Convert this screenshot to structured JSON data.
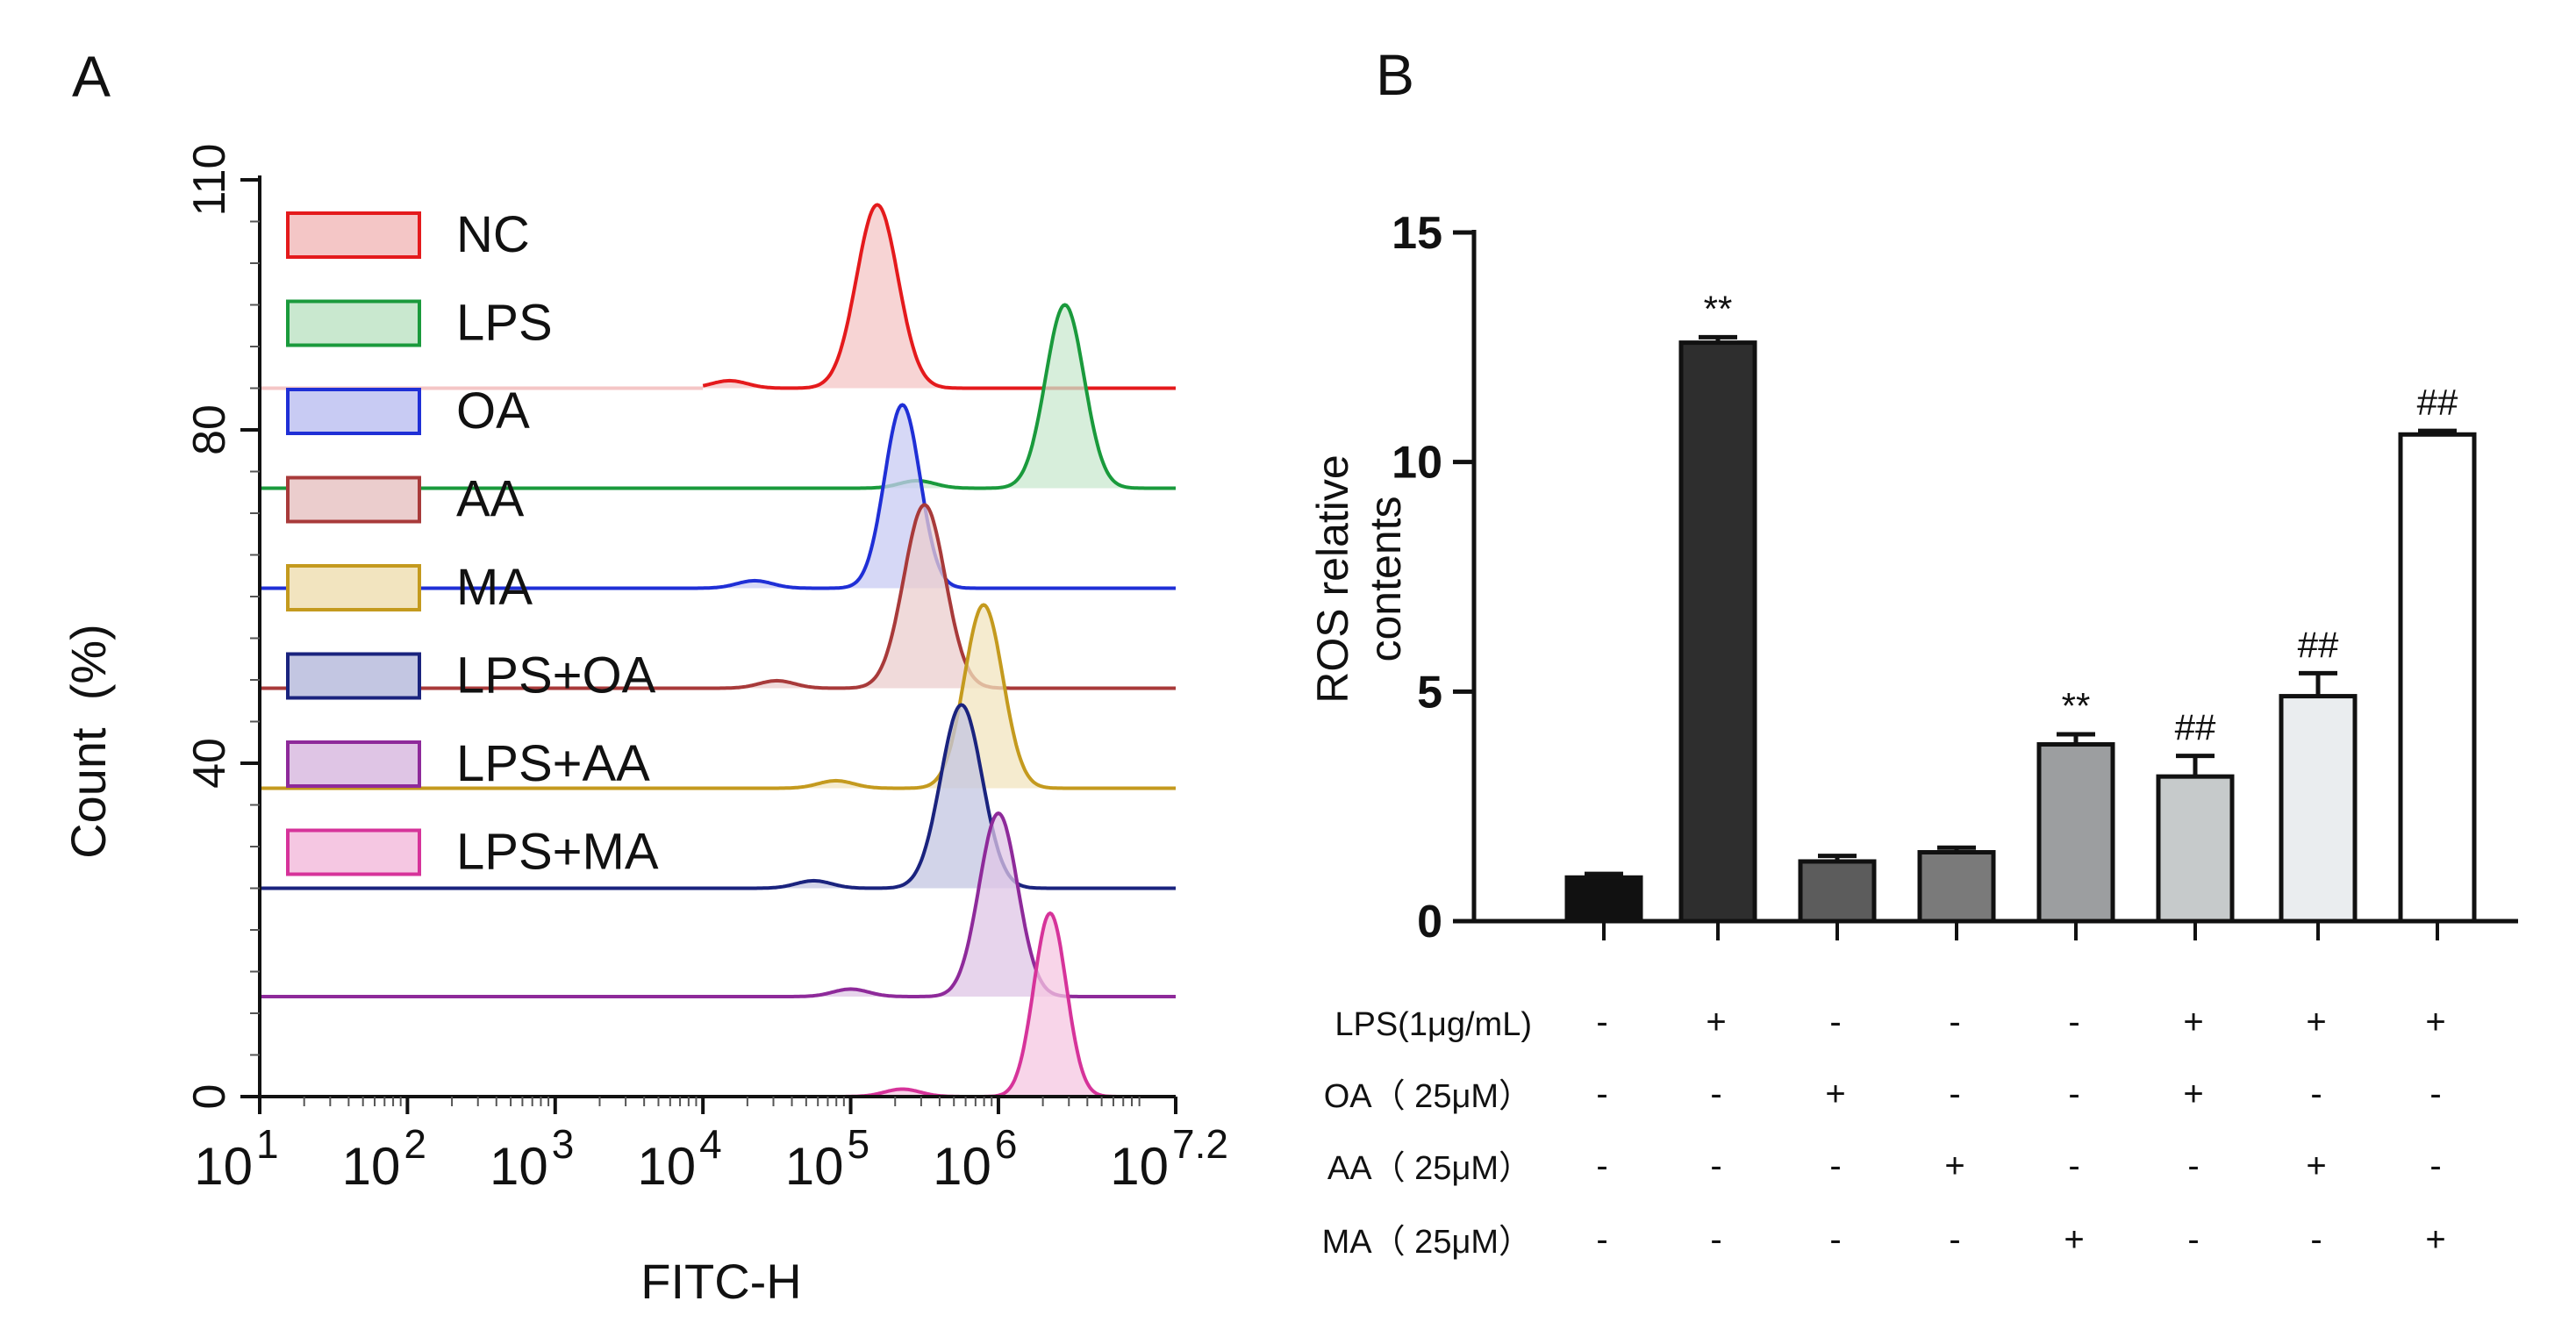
{
  "chart_data": [
    {
      "panel": "A",
      "type": "line",
      "subtype": "flow-cytometry-histogram-overlay",
      "xlabel": "FITC-H",
      "ylabel": "Count  (%)",
      "xscale": "log10",
      "xlim_log": [
        1,
        7.2
      ],
      "ylim": [
        0,
        110
      ],
      "yticks": [
        0,
        40,
        80,
        110
      ],
      "xticks": [
        {
          "base": "10",
          "exp": "1",
          "log": 1
        },
        {
          "base": "10",
          "exp": "2",
          "log": 2
        },
        {
          "base": "10",
          "exp": "3",
          "log": 3
        },
        {
          "base": "10",
          "exp": "4",
          "log": 4
        },
        {
          "base": "10",
          "exp": "5",
          "log": 5
        },
        {
          "base": "10",
          "exp": "6",
          "log": 6
        },
        {
          "base": "10",
          "exp": "7.2",
          "log": 7.2
        }
      ],
      "legend_position": "top-left",
      "series": [
        {
          "name": "NC",
          "color": "#e41a1c",
          "fill": "#f4c6c6",
          "offset": 85,
          "peak_log": 5.18,
          "width": 0.14,
          "height": 22,
          "left_start_log": 4.0
        },
        {
          "name": "LPS",
          "color": "#1a9a3c",
          "fill": "#c9e8cf",
          "offset": 73,
          "peak_log": 6.45,
          "width": 0.13,
          "height": 22,
          "left_start_log": 1.0
        },
        {
          "name": "OA",
          "color": "#1f2fd6",
          "fill": "#c8cbf3",
          "offset": 61,
          "peak_log": 5.35,
          "width": 0.12,
          "height": 22,
          "left_start_log": 1.0
        },
        {
          "name": "AA",
          "color": "#a83a3a",
          "fill": "#ebcdcd",
          "offset": 49,
          "peak_log": 5.5,
          "width": 0.14,
          "height": 22,
          "left_start_log": 1.0
        },
        {
          "name": "MA",
          "color": "#c49a1e",
          "fill": "#f2e4bf",
          "offset": 37,
          "peak_log": 5.9,
          "width": 0.13,
          "height": 22,
          "left_start_log": 1.0
        },
        {
          "name": "LPS+OA",
          "color": "#1a237e",
          "fill": "#c3c6e2",
          "offset": 25,
          "peak_log": 5.75,
          "width": 0.14,
          "height": 22,
          "left_start_log": 1.0
        },
        {
          "name": "LPS+AA",
          "color": "#8e2a9a",
          "fill": "#dfc5e5",
          "offset": 12,
          "peak_log": 6.0,
          "width": 0.13,
          "height": 22,
          "left_start_log": 1.0
        },
        {
          "name": "LPS+MA",
          "color": "#d6339a",
          "fill": "#f5c7e2",
          "offset": 0,
          "peak_log": 6.35,
          "width": 0.11,
          "height": 22,
          "left_start_log": 1.0
        }
      ]
    },
    {
      "panel": "B",
      "type": "bar",
      "ylabel_line1": "ROS relative",
      "ylabel_line2": "contents",
      "ylim": [
        0,
        15
      ],
      "yticks": [
        0,
        5,
        10,
        15
      ],
      "categories": [
        "NC",
        "LPS",
        "OA",
        "AA",
        "MA",
        "LPS+OA",
        "LPS+AA",
        "LPS+MA"
      ],
      "values": [
        0.95,
        12.6,
        1.3,
        1.5,
        3.85,
        3.15,
        4.9,
        10.6
      ],
      "errors": [
        0.08,
        0.12,
        0.12,
        0.1,
        0.22,
        0.45,
        0.5,
        0.08
      ],
      "bar_colors": [
        "#111111",
        "#2e2e2e",
        "#5c5c5c",
        "#7a7a7a",
        "#9c9ea0",
        "#c6cacb",
        "#eaedef",
        "#ffffff"
      ],
      "significance": [
        "",
        "**",
        "",
        "",
        "**",
        "##",
        "##",
        "##"
      ],
      "treatment_table": [
        {
          "label": "LPS(1μg/mL)",
          "signs": [
            "-",
            "+",
            "-",
            "-",
            "-",
            "+",
            "+",
            "+"
          ]
        },
        {
          "label": "OA（ 25μM）",
          "signs": [
            "-",
            "-",
            "+",
            "-",
            "-",
            "+",
            "-",
            "-"
          ]
        },
        {
          "label": "AA（ 25μM）",
          "signs": [
            "-",
            "-",
            "-",
            "+",
            "-",
            "-",
            "+",
            "-"
          ]
        },
        {
          "label": "MA（ 25μM）",
          "signs": [
            "-",
            "-",
            "-",
            "-",
            "+",
            "-",
            "-",
            "+"
          ]
        }
      ]
    }
  ],
  "panel_labels": {
    "a": "A",
    "b": "B"
  }
}
